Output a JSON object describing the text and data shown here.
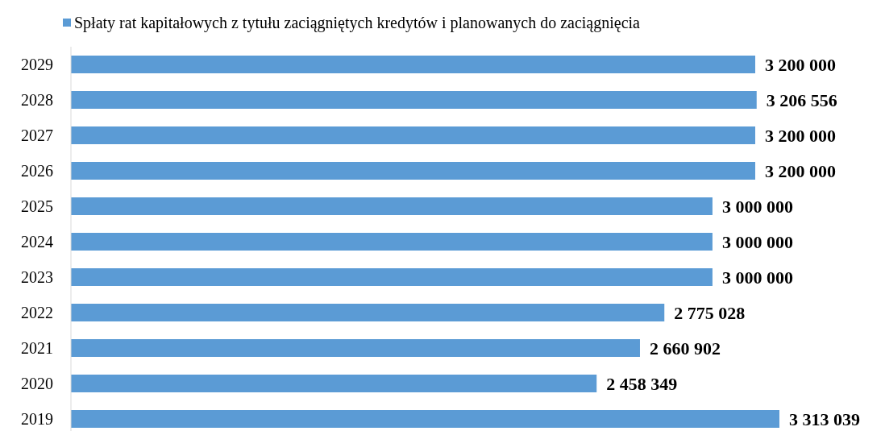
{
  "chart_data": {
    "type": "bar",
    "orientation": "horizontal",
    "categories": [
      "2029",
      "2028",
      "2027",
      "2026",
      "2025",
      "2024",
      "2023",
      "2022",
      "2021",
      "2020",
      "2019"
    ],
    "series": [
      {
        "name": "Spłaty rat kapitałowych z tytułu zaciągniętych kredytów i planowanych do zaciągnięcia",
        "color": "#5b9bd5",
        "values": [
          3200000,
          3206556,
          3200000,
          3200000,
          3000000,
          3000000,
          3000000,
          2775028,
          2660902,
          2458349,
          3313039
        ],
        "value_labels": [
          "3 200 000",
          "3 206 556",
          "3 200 000",
          "3 200 000",
          "3 000 000",
          "3 000 000",
          "3 000 000",
          "2 775 028",
          "2 660 902",
          "2 458 349",
          "3 313 039"
        ]
      }
    ],
    "legend": "top"
  }
}
